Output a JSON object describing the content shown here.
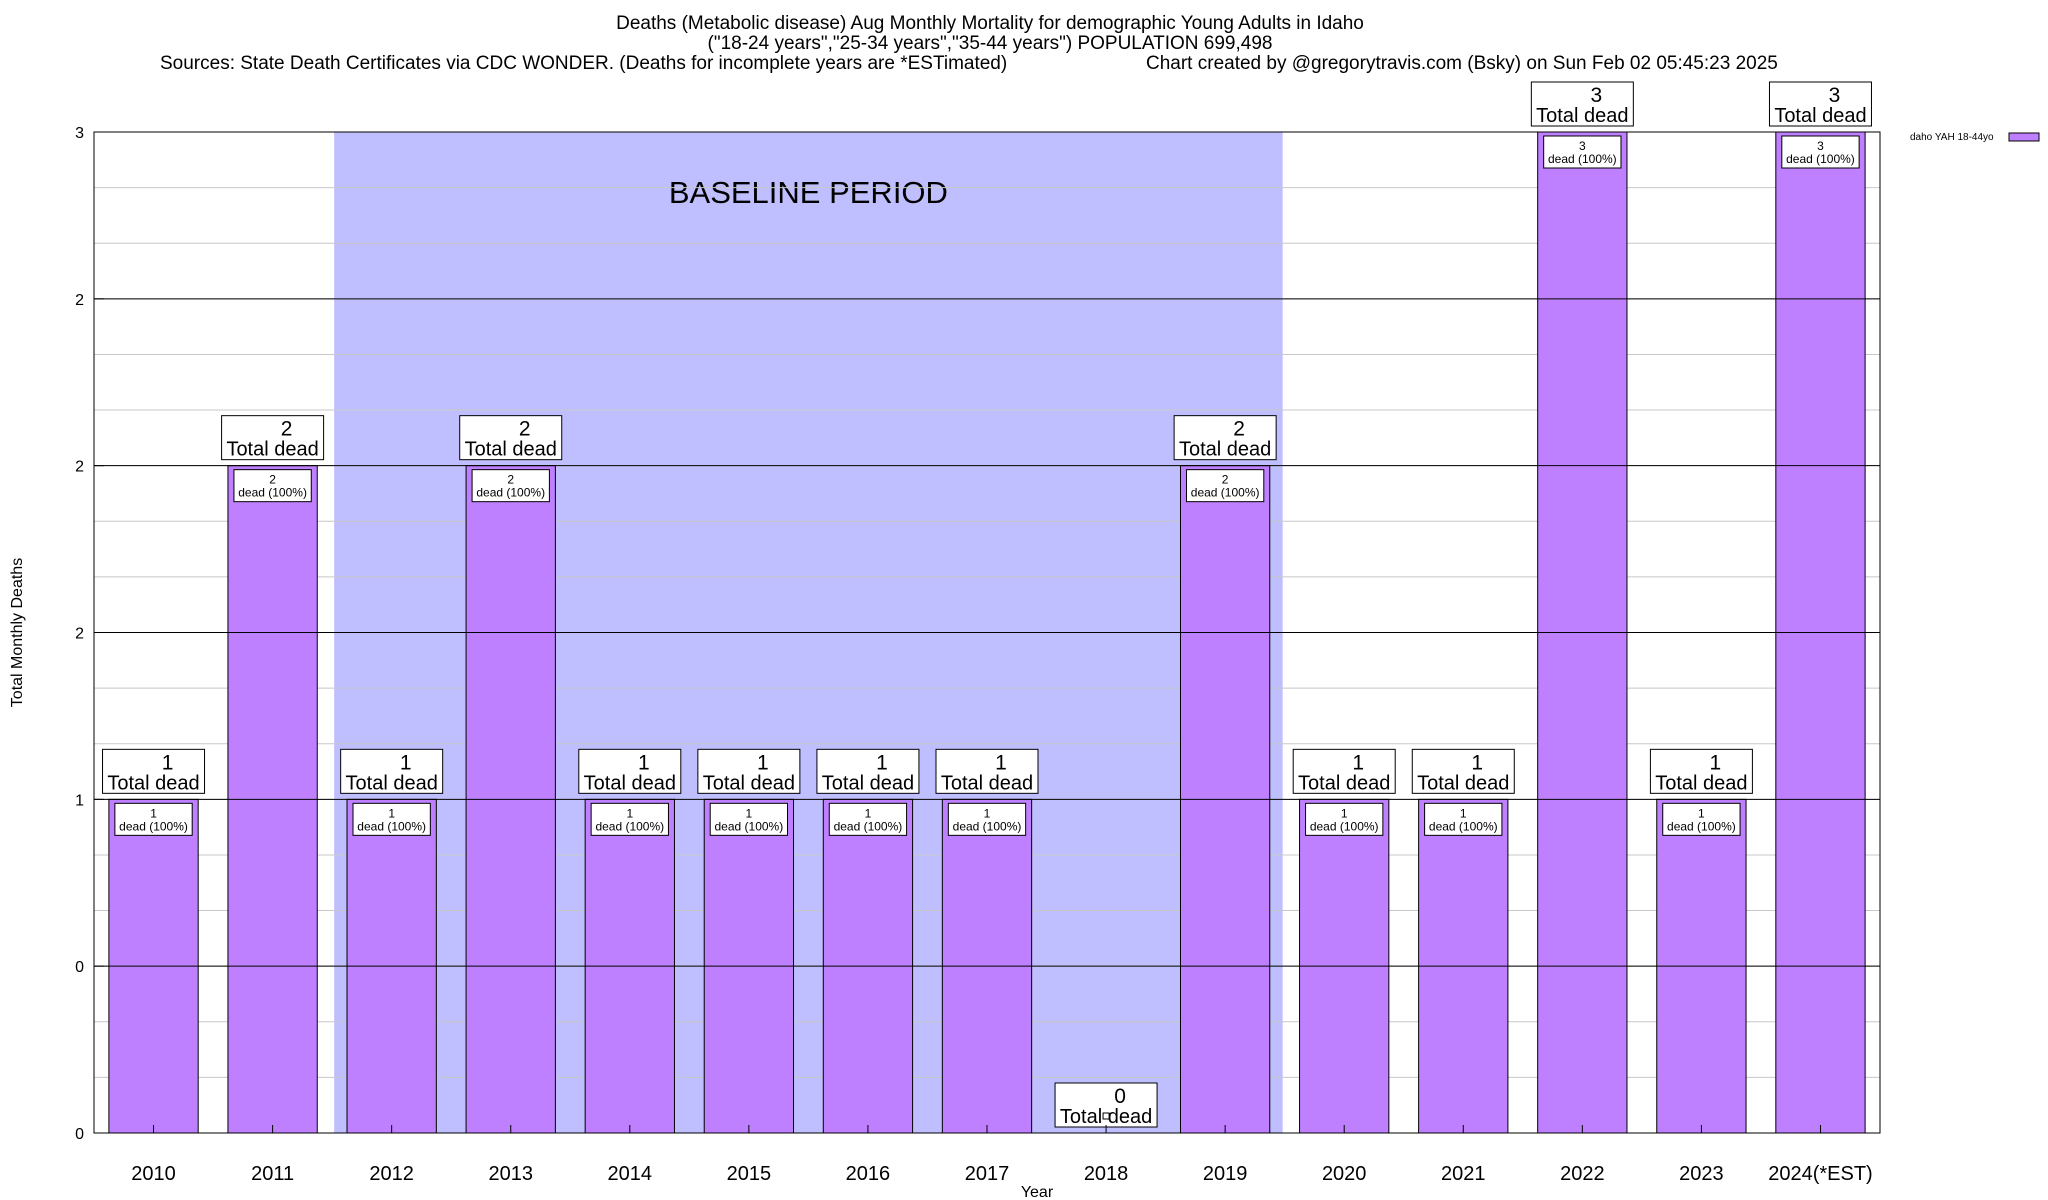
{
  "chart_data": {
    "type": "bar",
    "title": "Deaths (Metabolic disease) Aug Monthly Mortality for demographic Young Adults in Idaho",
    "subtitle": "(\"18-24 years\",\"25-34 years\",\"35-44 years\") POPULATION 699,498",
    "sources": "Sources: State Death Certificates via CDC WONDER. (Deaths for incomplete years are *ESTimated)",
    "credit": "Chart created by @gregorytravis.com (Bsky) on Sun Feb 02 05:45:23 2025",
    "xlabel": "Year",
    "ylabel": "Total Monthly Deaths",
    "ylim": [
      0,
      3
    ],
    "y_tick_labels": [
      "0",
      "0",
      "1",
      "2",
      "2",
      "2",
      "3"
    ],
    "y_tick_values": [
      0,
      0.5,
      1,
      1.5,
      2,
      2.5,
      3
    ],
    "categories": [
      "2010",
      "2011",
      "2012",
      "2013",
      "2014",
      "2015",
      "2016",
      "2017",
      "2018",
      "2019",
      "2020",
      "2021",
      "2022",
      "2023",
      "2024(*EST)"
    ],
    "series": [
      {
        "name": "daho YAH 18-44yo",
        "color": "#bf80ff",
        "values": [
          1,
          2,
          1,
          2,
          1,
          1,
          1,
          1,
          0,
          2,
          1,
          1,
          3,
          1,
          3
        ]
      }
    ],
    "total_labels": [
      "1",
      "2",
      "1",
      "2",
      "1",
      "1",
      "1",
      "1",
      "0",
      "2",
      "1",
      "1",
      "3",
      "1",
      "3"
    ],
    "total_dead_text": "Total dead",
    "bar_labels": [
      "1",
      "2",
      "1",
      "2",
      "1",
      "1",
      "1",
      "1",
      "",
      "2",
      "1",
      "1",
      "3",
      "1",
      "3"
    ],
    "bar_label_suffix": "dead (100%)",
    "baseline": {
      "label": "BASELINE PERIOD",
      "start": "2012",
      "end": "2019",
      "color": "#bfbfff"
    },
    "legend_position": "top-right",
    "grid": true
  }
}
